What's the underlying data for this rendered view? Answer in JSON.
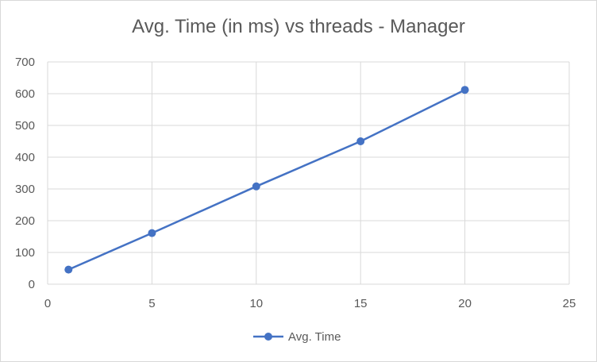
{
  "chart_data": {
    "type": "scatter",
    "title": "Avg. Time (in ms) vs threads - Manager",
    "xlabel": "",
    "ylabel": "",
    "xlim": [
      0,
      25
    ],
    "ylim": [
      0,
      700
    ],
    "xticks": [
      0,
      5,
      10,
      15,
      20,
      25
    ],
    "yticks": [
      0,
      100,
      200,
      300,
      400,
      500,
      600,
      700
    ],
    "grid": true,
    "legend_position": "bottom",
    "series": [
      {
        "name": "Avg. Time",
        "color": "#4472c4",
        "marker": "circle",
        "line": true,
        "x": [
          1,
          5,
          10,
          15,
          20
        ],
        "y": [
          46,
          161,
          308,
          450,
          612
        ]
      }
    ]
  }
}
